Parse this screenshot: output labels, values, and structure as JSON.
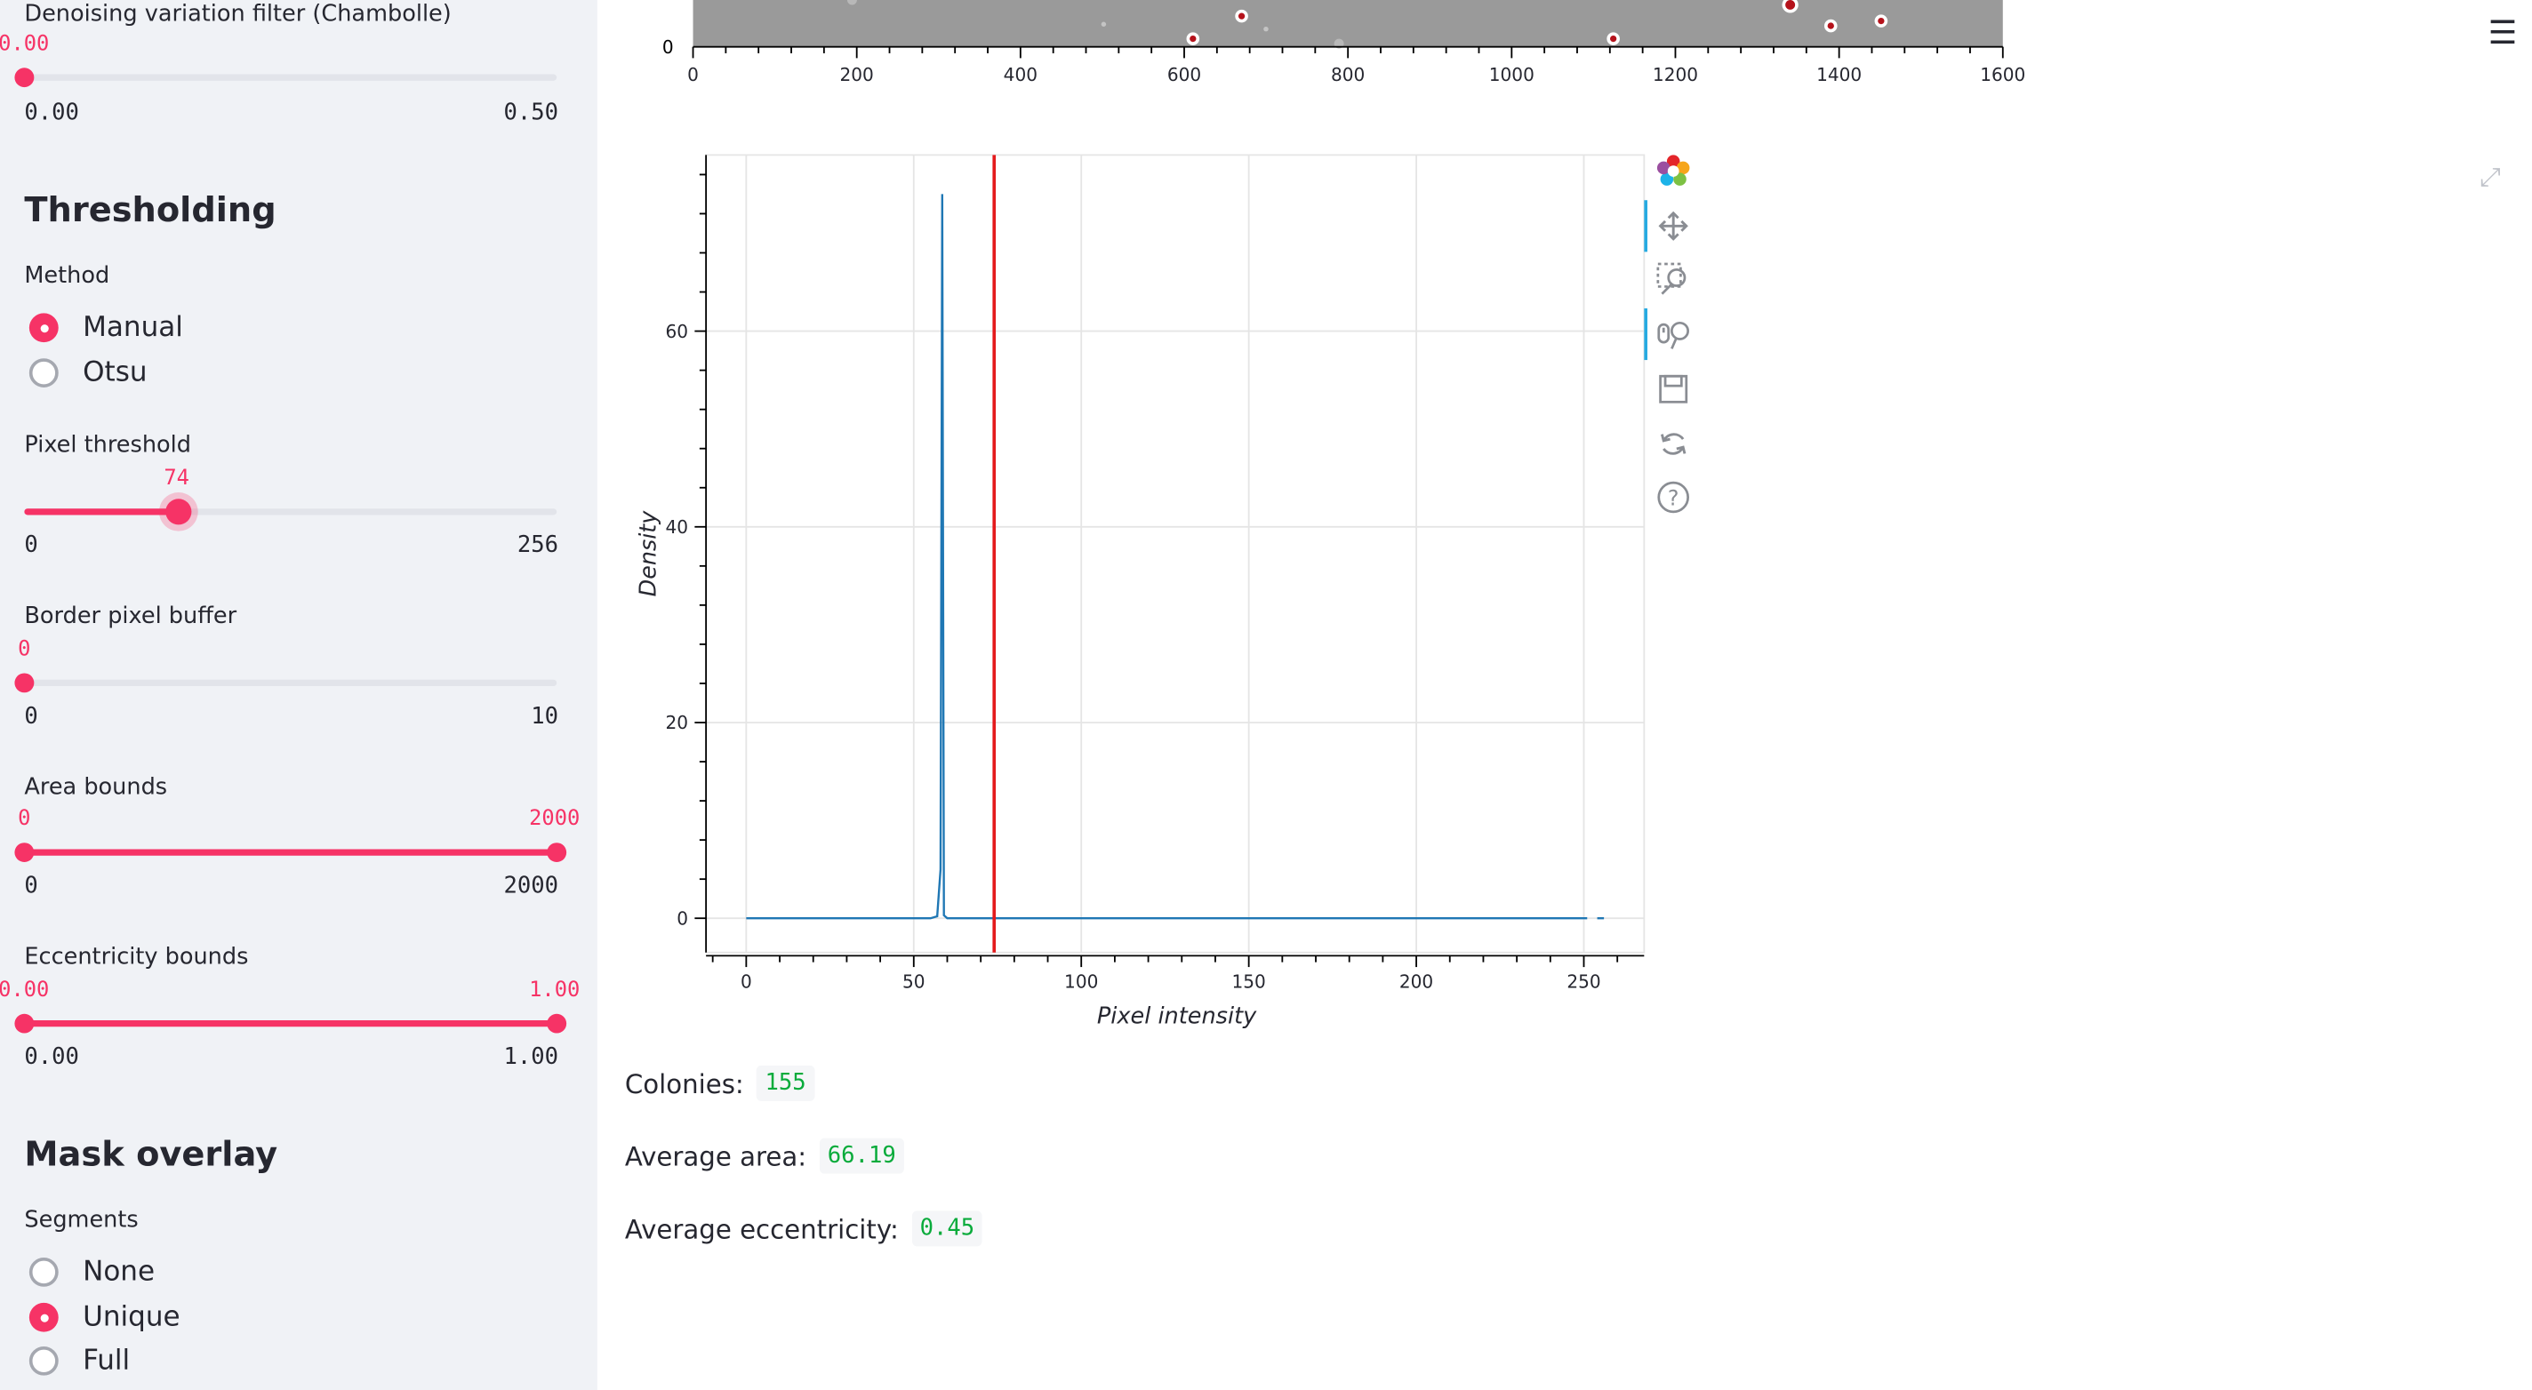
{
  "sidebar": {
    "denoise": {
      "label": "Denoising variation filter (Chambolle)",
      "value": "0.00",
      "min": "0.00",
      "max": "0.50",
      "fraction": 0.0
    },
    "thresholding": {
      "heading": "Thresholding",
      "method_label": "Method",
      "options": [
        {
          "label": "Manual",
          "selected": true
        },
        {
          "label": "Otsu",
          "selected": false
        }
      ]
    },
    "pixel_threshold": {
      "label": "Pixel threshold",
      "value": "74",
      "min": "0",
      "max": "256",
      "fraction": 0.289
    },
    "border_buffer": {
      "label": "Border pixel buffer",
      "value": "0",
      "min": "0",
      "max": "10",
      "fraction": 0.0
    },
    "area_bounds": {
      "label": "Area bounds",
      "value_low": "0",
      "value_high": "2000",
      "min": "0",
      "max": "2000",
      "low_fraction": 0.0,
      "high_fraction": 1.0
    },
    "eccentricity_bounds": {
      "label": "Eccentricity bounds",
      "value_low": "0.00",
      "value_high": "1.00",
      "min": "0.00",
      "max": "1.00",
      "low_fraction": 0.0,
      "high_fraction": 1.0
    },
    "mask_overlay": {
      "heading": "Mask overlay",
      "segments_label": "Segments",
      "options": [
        {
          "label": "None",
          "selected": false
        },
        {
          "label": "Unique",
          "selected": true
        },
        {
          "label": "Full",
          "selected": false
        }
      ]
    }
  },
  "image_plot": {
    "x_ticks": [
      "0",
      "200",
      "400",
      "600",
      "800",
      "1000",
      "1200",
      "1400",
      "1600"
    ],
    "y_tick": "0"
  },
  "chart_data": {
    "type": "line",
    "xlabel": "Pixel intensity",
    "ylabel": "Density",
    "xlim": [
      -12,
      268
    ],
    "ylim": [
      -3.5,
      78
    ],
    "x_ticks": [
      0,
      50,
      100,
      150,
      200,
      250
    ],
    "y_ticks": [
      0,
      20,
      40,
      60
    ],
    "grid": true,
    "series": [
      {
        "color": "#1f77b4",
        "points": [
          [
            0,
            0
          ],
          [
            55,
            0
          ],
          [
            57,
            0.2
          ],
          [
            58,
            5
          ],
          [
            58.5,
            74
          ],
          [
            59,
            0.3
          ],
          [
            60,
            0
          ],
          [
            251,
            0
          ]
        ]
      },
      {
        "color": "#1f77b4",
        "points": [
          [
            254,
            0
          ],
          [
            256,
            0
          ]
        ]
      }
    ],
    "threshold_line": {
      "x": 74,
      "color": "#e41a1c"
    }
  },
  "toolbar": {
    "icons": [
      "bokeh-logo-icon",
      "pan-icon",
      "box-zoom-icon",
      "wheel-zoom-icon",
      "save-icon",
      "reset-icon",
      "help-icon"
    ]
  },
  "stats": {
    "colonies_label": "Colonies:",
    "colonies_value": "155",
    "area_label": "Average area:",
    "area_value": "66.19",
    "ecc_label": "Average eccentricity:",
    "ecc_value": "0.45"
  },
  "colors": {
    "accent": "#f63366",
    "sidebar_bg": "#f0f2f6",
    "stat_green": "#09ab3b",
    "hist_blue": "#1f77b4",
    "threshold_red": "#e41a1c"
  }
}
